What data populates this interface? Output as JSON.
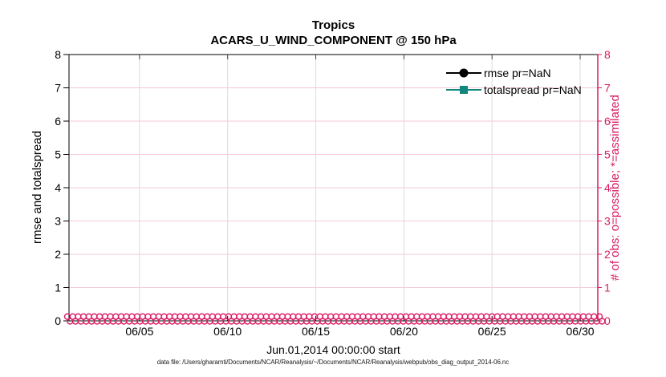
{
  "figure": {
    "footer": "data file: /Users/gharamti/Documents/NCAR/Reanalysis/~/Documents/NCAR/Reanalysis/webpub/obs_diag_output_2014-06.nc"
  },
  "chart_data": {
    "type": "line",
    "title_line1": "Tropics",
    "title_line2": "ACARS_U_WIND_COMPONENT @ 150 hPa",
    "xlabel": "Jun.01,2014 00:00:00 start",
    "ylabel_left": "rmse and totalspread",
    "ylabel_right": "# of obs: o=possible; *=assimilated",
    "xlim_days": [
      1,
      31
    ],
    "ylim_left": [
      0,
      8
    ],
    "ylim_right": [
      0,
      8
    ],
    "grid": true,
    "x_ticks": [
      {
        "day": 5,
        "label": "06/05"
      },
      {
        "day": 10,
        "label": "06/10"
      },
      {
        "day": 15,
        "label": "06/15"
      },
      {
        "day": 20,
        "label": "06/20"
      },
      {
        "day": 25,
        "label": "06/25"
      },
      {
        "day": 30,
        "label": "06/30"
      }
    ],
    "y_ticks": [
      0,
      1,
      2,
      3,
      4,
      5,
      6,
      7,
      8
    ],
    "legend": {
      "position": "top-right",
      "box": false,
      "entries": [
        {
          "label": "rmse pr=NaN",
          "color": "#000000",
          "marker": "filled-circle"
        },
        {
          "label": "totalspread pr=NaN",
          "color": "#12877f",
          "marker": "filled-square"
        }
      ]
    },
    "series": [
      {
        "name": "rmse pr=NaN",
        "color": "#000000",
        "marker": "circle",
        "values": null,
        "note": "pr=NaN - no curve plotted"
      },
      {
        "name": "totalspread pr=NaN",
        "color": "#12877f",
        "marker": "square",
        "values": null,
        "note": "pr=NaN - no curve plotted"
      }
    ],
    "obs_markers": {
      "description": "possible (o) and assimilated (*) observation counts, all zero along right axis",
      "value": 0,
      "n_points_per_series": 100,
      "series_names": [
        "possible (o)",
        "assimilated (*)"
      ]
    },
    "colors": {
      "right_axis_pink": "#d91a62",
      "obs_marker_pink": "#d91a62",
      "totalspread_teal": "#12877f",
      "rmse_black": "#000000",
      "grid_horizontal_pink": "#f6c9da",
      "grid_vertical_gray": "#dcdcdc"
    }
  }
}
